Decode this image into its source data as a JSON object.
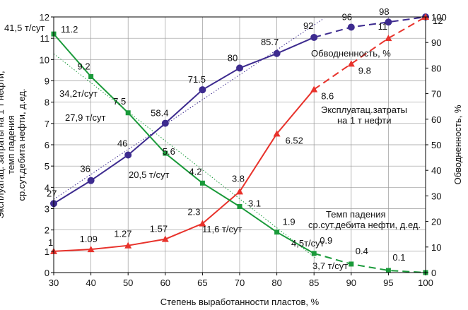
{
  "chart_data": {
    "type": "line",
    "xlabel": "Степень выработанности пластов, %",
    "ylabel": "Эксплуатац. затраты на 1 т нефти, темп падения ср.сут.дебита нефти, д.ед.",
    "y2label": "Обводненность, %",
    "x": [
      30,
      40,
      50,
      60,
      65,
      70,
      80,
      85,
      90,
      95,
      100
    ],
    "x_ticks": [
      "30",
      "40",
      "50",
      "60",
      "65",
      "70",
      "80",
      "85",
      "90",
      "95",
      "100"
    ],
    "ylim": [
      0,
      12
    ],
    "y_ticks": [
      "0",
      "1",
      "2",
      "3",
      "4",
      "5",
      "6",
      "7",
      "8",
      "9",
      "10",
      "11",
      "12"
    ],
    "y2lim": [
      0,
      100
    ],
    "y2_ticks": [
      "0",
      "10",
      "20",
      "30",
      "40",
      "50",
      "60",
      "70",
      "80",
      "90",
      "100"
    ],
    "grid": true,
    "series": [
      {
        "name": "Обводненность, %",
        "axis": "right",
        "color": "#3d2b8f",
        "marker": "circle",
        "values": [
          27,
          36,
          46,
          58.4,
          71.5,
          80,
          85.7,
          92,
          96,
          98,
          100
        ],
        "labels": [
          "27",
          "36",
          "46",
          "58.4",
          "71.5",
          "80",
          "85.7",
          "92",
          "96",
          "98",
          ""
        ],
        "dashed_from_index": 7
      },
      {
        "name": "Эксплуатац.затраты на 1 т нефти",
        "axis": "left",
        "color": "#e8322b",
        "marker": "triangle",
        "values": [
          1,
          1.09,
          1.27,
          1.57,
          2.3,
          3.8,
          6.52,
          8.6,
          9.8,
          11,
          12
        ],
        "labels": [
          "1",
          "1.09",
          "1.27",
          "1.57",
          "2.3",
          "3.8",
          "6.52",
          "8.6",
          "9.8",
          "11",
          "12"
        ],
        "dashed_from_index": 7
      },
      {
        "name": "Темп падения ср.сут.дебита нефти, д.ед.",
        "axis": "left",
        "color": "#1a9a3a",
        "marker": "square",
        "values": [
          11.2,
          9.2,
          7.5,
          5.6,
          4.2,
          3.1,
          1.9,
          0.9,
          0.4,
          0.1,
          0
        ],
        "labels": [
          "11.2",
          "9.2",
          "7.5",
          "5.6",
          "4.2",
          "3.1",
          "1.9",
          "0.9",
          "0.4",
          "0.1",
          ""
        ],
        "dashed_from_index": 7
      }
    ],
    "annotations": [
      "41,5 т/сут",
      "34,2т/сут",
      "27,9 т/сут",
      "20,5 т/сут",
      "11,6 т/сут",
      "4,5т/сут",
      "3,7 т/сут"
    ],
    "legend_labels": [
      "Обводненность, %",
      "Эксплуатац.затраты",
      "на 1 т нефти",
      "Темп падения",
      "ср.сут.дебита нефти, д.ед."
    ]
  }
}
